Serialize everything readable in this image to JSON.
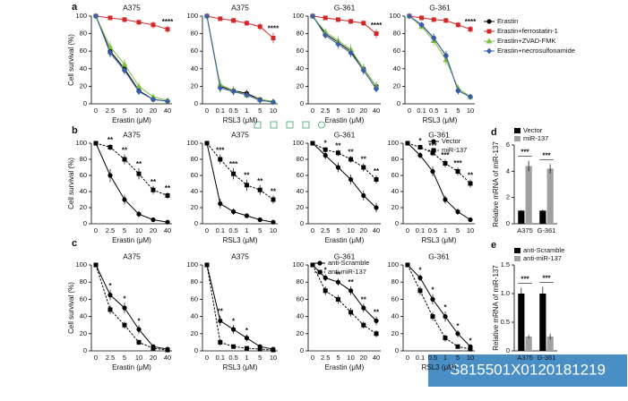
{
  "panel_labels": [
    "a",
    "b",
    "c",
    "d",
    "e"
  ],
  "id_label": "S815501X0120181219",
  "chart_data": [
    {
      "type": "line",
      "title": "A375",
      "x_label": "Erastin (μM)",
      "y_label": "Cell survival (%)",
      "categories": [
        "0",
        "2.5",
        "5",
        "10",
        "20",
        "40"
      ],
      "ylim": [
        0,
        100
      ],
      "yticks": [
        0,
        20,
        40,
        60,
        80,
        100
      ],
      "annotations": [
        null,
        null,
        null,
        null,
        null,
        "****"
      ],
      "series": [
        {
          "color": "#000000",
          "marker": "circle",
          "values": [
            100,
            60,
            40,
            15,
            5,
            3
          ],
          "errors": [
            0,
            6,
            5,
            4,
            3,
            2
          ]
        },
        {
          "color": "#d62728",
          "marker": "square",
          "values": [
            100,
            98,
            96,
            93,
            90,
            85
          ],
          "errors": [
            0,
            2,
            3,
            3,
            4,
            4
          ]
        },
        {
          "color": "#7fbf3f",
          "marker": "triangle",
          "values": [
            100,
            65,
            45,
            20,
            8,
            4
          ],
          "errors": [
            0,
            6,
            6,
            5,
            3,
            2
          ]
        },
        {
          "color": "#3a5fa8",
          "marker": "diamond",
          "values": [
            100,
            58,
            38,
            14,
            5,
            3
          ],
          "errors": [
            0,
            5,
            5,
            4,
            2,
            2
          ]
        }
      ]
    },
    {
      "type": "line",
      "title": "A375",
      "x_label": "RSL3 (μM)",
      "categories": [
        "0",
        "0.1",
        "0.5",
        "1",
        "5",
        "10"
      ],
      "ylim": [
        0,
        100
      ],
      "yticks": [
        0,
        20,
        40,
        60,
        80,
        100
      ],
      "annotations": [
        null,
        null,
        null,
        null,
        null,
        "****"
      ],
      "series": [
        {
          "color": "#000000",
          "marker": "circle",
          "values": [
            100,
            20,
            15,
            12,
            5,
            2
          ],
          "errors": [
            0,
            6,
            5,
            4,
            2,
            1
          ]
        },
        {
          "color": "#d62728",
          "marker": "square",
          "values": [
            100,
            97,
            95,
            92,
            88,
            75
          ],
          "errors": [
            0,
            2,
            3,
            3,
            4,
            6
          ]
        },
        {
          "color": "#7fbf3f",
          "marker": "triangle",
          "values": [
            100,
            22,
            15,
            10,
            5,
            3
          ],
          "errors": [
            0,
            6,
            5,
            4,
            2,
            1
          ]
        },
        {
          "color": "#3a5fa8",
          "marker": "diamond",
          "values": [
            100,
            18,
            14,
            10,
            4,
            2
          ],
          "errors": [
            0,
            5,
            4,
            3,
            2,
            1
          ]
        }
      ]
    },
    {
      "type": "line",
      "title": "G-361",
      "x_label": "Erastin (μM)",
      "categories": [
        "0",
        "2.5",
        "5",
        "10",
        "20",
        "40"
      ],
      "ylim": [
        0,
        100
      ],
      "yticks": [
        0,
        20,
        40,
        60,
        80,
        100
      ],
      "annotations": [
        null,
        null,
        null,
        null,
        null,
        "****"
      ],
      "series": [
        {
          "color": "#000000",
          "marker": "circle",
          "values": [
            100,
            80,
            70,
            60,
            40,
            20
          ],
          "errors": [
            0,
            4,
            5,
            5,
            5,
            5
          ]
        },
        {
          "color": "#d62728",
          "marker": "square",
          "values": [
            100,
            98,
            96,
            94,
            92,
            80
          ],
          "errors": [
            0,
            2,
            2,
            3,
            3,
            5
          ]
        },
        {
          "color": "#7fbf3f",
          "marker": "triangle",
          "values": [
            100,
            82,
            72,
            62,
            40,
            20
          ],
          "errors": [
            0,
            4,
            5,
            6,
            6,
            5
          ]
        },
        {
          "color": "#3a5fa8",
          "marker": "diamond",
          "values": [
            100,
            78,
            68,
            58,
            38,
            17
          ],
          "errors": [
            0,
            4,
            5,
            5,
            5,
            4
          ]
        }
      ]
    },
    {
      "type": "line",
      "title": "G-361",
      "x_label": "RSL3 (μM)",
      "categories": [
        "0",
        "0.1",
        "0.5",
        "1",
        "5",
        "10"
      ],
      "ylim": [
        0,
        100
      ],
      "yticks": [
        0,
        20,
        40,
        60,
        80,
        100
      ],
      "annotations": [
        null,
        null,
        null,
        null,
        null,
        "****"
      ],
      "legend": "right",
      "series": [
        {
          "name": "Erastin",
          "color": "#000000",
          "marker": "circle",
          "values": [
            100,
            90,
            75,
            55,
            15,
            8
          ],
          "errors": [
            0,
            3,
            5,
            5,
            4,
            3
          ]
        },
        {
          "name": "Erastin+ferrostatin-1",
          "color": "#d62728",
          "marker": "square",
          "values": [
            100,
            98,
            96,
            95,
            90,
            85
          ],
          "errors": [
            0,
            2,
            2,
            3,
            3,
            4
          ]
        },
        {
          "name": "Erastin+ZVAD-FMK",
          "color": "#7fbf3f",
          "marker": "triangle",
          "values": [
            100,
            88,
            72,
            50,
            18,
            8
          ],
          "errors": [
            0,
            4,
            6,
            6,
            4,
            3
          ]
        },
        {
          "name": "Erastin+necrosulfonamide",
          "color": "#3a5fa8",
          "marker": "diamond",
          "values": [
            100,
            90,
            75,
            55,
            15,
            8
          ],
          "errors": [
            0,
            3,
            5,
            5,
            4,
            3
          ]
        }
      ]
    },
    {
      "type": "line",
      "title": "A375",
      "x_label": "Erastin (μM)",
      "y_label": "Cell survival (%)",
      "categories": [
        "0",
        "2.5",
        "5",
        "10",
        "20",
        "40"
      ],
      "ylim": [
        0,
        100
      ],
      "yticks": [
        0,
        20,
        40,
        60,
        80,
        100
      ],
      "annotations": [
        null,
        "**",
        "**",
        "**",
        "**",
        "**"
      ],
      "series": [
        {
          "color": "#000000",
          "marker": "circle",
          "values": [
            100,
            60,
            30,
            12,
            5,
            2
          ],
          "errors": [
            0,
            8,
            6,
            4,
            2,
            1
          ]
        },
        {
          "color": "#000000",
          "marker": "square",
          "dash": true,
          "values": [
            100,
            95,
            80,
            62,
            42,
            35
          ],
          "errors": [
            0,
            4,
            6,
            7,
            5,
            4
          ]
        }
      ]
    },
    {
      "type": "line",
      "title": "A375",
      "x_label": "RSL3 (μM)",
      "categories": [
        "0",
        "0.1",
        "0.5",
        "1",
        "5",
        "10"
      ],
      "ylim": [
        0,
        100
      ],
      "yticks": [
        0,
        20,
        40,
        60,
        80,
        100
      ],
      "annotations": [
        null,
        "***",
        "***",
        "**",
        "**",
        "**"
      ],
      "series": [
        {
          "color": "#000000",
          "marker": "circle",
          "values": [
            100,
            25,
            15,
            10,
            5,
            2
          ],
          "errors": [
            0,
            6,
            4,
            3,
            2,
            1
          ]
        },
        {
          "color": "#000000",
          "marker": "square",
          "dash": true,
          "values": [
            100,
            80,
            62,
            48,
            42,
            30
          ],
          "errors": [
            0,
            6,
            7,
            7,
            6,
            5
          ]
        }
      ]
    },
    {
      "type": "line",
      "title": "G-361",
      "x_label": "Erastin (μM)",
      "categories": [
        "0",
        "2.5",
        "5",
        "10",
        "20",
        "40"
      ],
      "ylim": [
        0,
        100
      ],
      "yticks": [
        0,
        20,
        40,
        60,
        80,
        100
      ],
      "annotations": [
        null,
        "*",
        "**",
        "**",
        "**",
        "**"
      ],
      "series": [
        {
          "color": "#000000",
          "marker": "circle",
          "values": [
            100,
            85,
            70,
            55,
            35,
            20
          ],
          "errors": [
            0,
            5,
            6,
            6,
            6,
            6
          ]
        },
        {
          "color": "#000000",
          "marker": "square",
          "dash": true,
          "values": [
            100,
            92,
            88,
            80,
            70,
            55
          ],
          "errors": [
            0,
            3,
            4,
            4,
            5,
            5
          ]
        }
      ]
    },
    {
      "type": "line",
      "title": "G-361",
      "x_label": "RSL3 (μM)",
      "categories": [
        "0",
        "0.1",
        "0.5",
        "1",
        "5",
        "10"
      ],
      "ylim": [
        0,
        100
      ],
      "yticks": [
        0,
        20,
        40,
        60,
        80,
        100
      ],
      "annotations": [
        null,
        "*",
        "***",
        "***",
        "***",
        "**"
      ],
      "legend": "upper right",
      "series": [
        {
          "name": "Vector",
          "color": "#000000",
          "marker": "circle",
          "values": [
            100,
            85,
            65,
            30,
            15,
            5
          ],
          "errors": [
            0,
            4,
            6,
            5,
            4,
            2
          ]
        },
        {
          "name": "miR-137",
          "color": "#000000",
          "marker": "square",
          "dash": true,
          "values": [
            100,
            95,
            88,
            75,
            65,
            50
          ],
          "errors": [
            0,
            3,
            4,
            5,
            5,
            5
          ]
        }
      ]
    },
    {
      "type": "bar",
      "y_label": "Relative mRNA of miR-137",
      "categories": [
        "A375",
        "G-361"
      ],
      "ylim": [
        0,
        6
      ],
      "yticks": [
        0,
        2,
        4,
        6
      ],
      "annotations": [
        "***",
        "***"
      ],
      "legend": "top",
      "series": [
        {
          "name": "Vector",
          "color": "#000000",
          "values": [
            1,
            1
          ],
          "errors": [
            0.05,
            0.08
          ]
        },
        {
          "name": "miR-137",
          "color": "#a0a0a0",
          "values": [
            4.4,
            4.2
          ],
          "errors": [
            0.4,
            0.35
          ]
        }
      ]
    },
    {
      "type": "line",
      "title": "A375",
      "x_label": "Erastin (μM)",
      "y_label": "Cell survival (%)",
      "categories": [
        "0",
        "2.5",
        "5",
        "10",
        "20",
        "40"
      ],
      "ylim": [
        0,
        100
      ],
      "yticks": [
        0,
        20,
        40,
        60,
        80,
        100
      ],
      "annotations": [
        null,
        "*",
        "*",
        "*",
        null,
        null
      ],
      "series": [
        {
          "color": "#000000",
          "marker": "circle",
          "values": [
            100,
            65,
            50,
            25,
            5,
            2
          ],
          "errors": [
            0,
            6,
            6,
            5,
            2,
            1
          ]
        },
        {
          "color": "#000000",
          "marker": "square",
          "dash": true,
          "values": [
            100,
            48,
            30,
            10,
            3,
            1
          ],
          "errors": [
            0,
            5,
            4,
            3,
            1,
            1
          ]
        }
      ]
    },
    {
      "type": "line",
      "title": "A375",
      "x_label": "RSL3 (μM)",
      "categories": [
        "0",
        "0.1",
        "0.5",
        "1",
        "5",
        "10"
      ],
      "ylim": [
        0,
        100
      ],
      "yticks": [
        0,
        20,
        40,
        60,
        80,
        100
      ],
      "annotations": [
        null,
        "**",
        "*",
        "*",
        null,
        null
      ],
      "series": [
        {
          "color": "#000000",
          "marker": "circle",
          "values": [
            100,
            35,
            25,
            15,
            5,
            2
          ],
          "errors": [
            0,
            6,
            5,
            4,
            2,
            1
          ]
        },
        {
          "color": "#000000",
          "marker": "square",
          "dash": true,
          "values": [
            100,
            10,
            5,
            3,
            2,
            1
          ],
          "errors": [
            0,
            4,
            2,
            1,
            1,
            1
          ]
        }
      ]
    },
    {
      "type": "line",
      "title": "G-361",
      "x_label": "Erastin (μM)",
      "categories": [
        "0",
        "2.5",
        "5",
        "10",
        "20",
        "40"
      ],
      "ylim": [
        0,
        100
      ],
      "yticks": [
        0,
        20,
        40,
        60,
        80,
        100
      ],
      "annotations": [
        null,
        "*",
        "**",
        "**",
        "**",
        "**"
      ],
      "legend": "upper right",
      "series": [
        {
          "name": "anti-Scramble",
          "color": "#000000",
          "marker": "circle",
          "values": [
            100,
            85,
            80,
            70,
            50,
            35
          ],
          "errors": [
            0,
            4,
            4,
            5,
            5,
            5
          ]
        },
        {
          "name": "anti-miR-137",
          "color": "#000000",
          "marker": "square",
          "dash": true,
          "values": [
            100,
            70,
            60,
            45,
            30,
            20
          ],
          "errors": [
            0,
            5,
            5,
            5,
            4,
            4
          ]
        }
      ]
    },
    {
      "type": "line",
      "title": "G-361",
      "x_label": "RSL3 (μM)",
      "categories": [
        "0",
        "0.1",
        "0.5",
        "1",
        "5",
        "10"
      ],
      "ylim": [
        0,
        100
      ],
      "yticks": [
        0,
        20,
        40,
        60,
        80,
        100
      ],
      "annotations": [
        null,
        "*",
        "*",
        "*",
        "*",
        "*"
      ],
      "series": [
        {
          "color": "#000000",
          "marker": "circle",
          "values": [
            100,
            85,
            60,
            40,
            20,
            5
          ],
          "errors": [
            0,
            4,
            6,
            6,
            4,
            2
          ]
        },
        {
          "color": "#000000",
          "marker": "square",
          "dash": true,
          "values": [
            100,
            70,
            40,
            15,
            5,
            2
          ],
          "errors": [
            0,
            5,
            5,
            4,
            2,
            1
          ]
        }
      ]
    },
    {
      "type": "bar",
      "y_label": "Relative mRNA of miR-137",
      "categories": [
        "A375",
        "G-361"
      ],
      "ylim": [
        0,
        1.5
      ],
      "yticks": [
        0,
        0.5,
        {
          "value": 1,
          "label": "1.0"
        },
        1.5
      ],
      "annotations": [
        "***",
        "***"
      ],
      "legend": "top",
      "series": [
        {
          "name": "anti-Scramble",
          "color": "#000000",
          "values": [
            1,
            1
          ],
          "errors": [
            0.1,
            0.12
          ]
        },
        {
          "name": "anti-miR-137",
          "color": "#a0a0a0",
          "values": [
            0.25,
            0.25
          ],
          "errors": [
            0.03,
            0.05
          ]
        }
      ]
    }
  ]
}
